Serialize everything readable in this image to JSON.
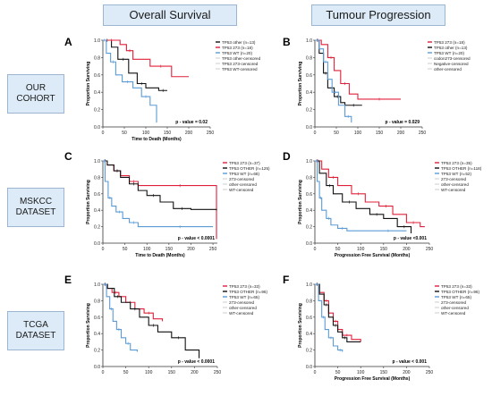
{
  "headers": {
    "col1": "Overall Survival",
    "col2": "Tumour Progression"
  },
  "rows": [
    {
      "line1": "OUR",
      "line2": "COHORT"
    },
    {
      "line1": "MSKCC",
      "line2": "DATASET"
    },
    {
      "line1": "TCGA",
      "line2": "DATASET"
    }
  ],
  "panel_letters": [
    "A",
    "B",
    "C",
    "D",
    "E",
    "F"
  ],
  "colors": {
    "red": "#e0203a",
    "black": "#111111",
    "blue": "#5b9bd5",
    "gray": "#aaaaaa"
  },
  "chart_data": [
    {
      "id": "A",
      "type": "line",
      "ylabel": "Proportion Surviving",
      "xlabel": "Time to Death (Months)",
      "xlim": [
        0,
        250
      ],
      "ylim": [
        0.0,
        1.0
      ],
      "xticks": [
        0,
        50,
        100,
        150,
        200,
        250
      ],
      "yticks": [
        0.0,
        0.2,
        0.4,
        0.6,
        0.8,
        1.0
      ],
      "annotation": "p - value = 0.02",
      "legend": [
        "TP53 other (n=13)",
        "TP53 273 (n=18)",
        "TP53 WT (n=20)",
        "TP53 other-censored",
        "TP53 273-censored",
        "TP53 WT-censored"
      ],
      "series": [
        {
          "name": "TP53 other (n=13)",
          "color": "black",
          "x": [
            0,
            20,
            35,
            60,
            80,
            100,
            130,
            150
          ],
          "y": [
            1.0,
            0.92,
            0.78,
            0.62,
            0.5,
            0.45,
            0.42,
            0.42
          ]
        },
        {
          "name": "TP53 273 (n=18)",
          "color": "red",
          "x": [
            0,
            40,
            55,
            70,
            110,
            160,
            200
          ],
          "y": [
            1.0,
            0.95,
            0.88,
            0.78,
            0.7,
            0.58,
            0.58
          ]
        },
        {
          "name": "TP53 WT (n=20)",
          "color": "blue",
          "x": [
            0,
            8,
            18,
            30,
            45,
            70,
            90,
            110,
            125
          ],
          "y": [
            1.0,
            0.85,
            0.75,
            0.6,
            0.52,
            0.45,
            0.35,
            0.25,
            0.05
          ]
        }
      ]
    },
    {
      "id": "B",
      "type": "line",
      "ylabel": "Proportion Surviving",
      "xlabel": "",
      "xlim": [
        0,
        250
      ],
      "ylim": [
        0.0,
        1.0
      ],
      "xticks": [
        0,
        50,
        100,
        150,
        200,
        250
      ],
      "yticks": [
        0.0,
        0.2,
        0.4,
        0.6,
        0.8,
        1.0
      ],
      "annotation": "p - value = 0.029",
      "legend": [
        "TP53 273 (n=18)",
        "TP53 other (n=13)",
        "TP53 WT (n=20)",
        "codon273-censored",
        "Negative-censored",
        "other-censored"
      ],
      "series": [
        {
          "name": "TP53 273 (n=18)",
          "color": "red",
          "x": [
            0,
            15,
            30,
            45,
            60,
            80,
            100,
            200
          ],
          "y": [
            1.0,
            0.95,
            0.8,
            0.65,
            0.5,
            0.38,
            0.32,
            0.32
          ]
        },
        {
          "name": "TP53 other (n=13)",
          "color": "black",
          "x": [
            0,
            10,
            20,
            30,
            45,
            60,
            70,
            110
          ],
          "y": [
            1.0,
            0.85,
            0.62,
            0.45,
            0.35,
            0.28,
            0.25,
            0.25
          ]
        },
        {
          "name": "TP53 WT (n=20)",
          "color": "blue",
          "x": [
            0,
            10,
            20,
            30,
            40,
            55,
            70,
            85
          ],
          "y": [
            1.0,
            0.9,
            0.75,
            0.55,
            0.4,
            0.25,
            0.12,
            0.05
          ]
        }
      ]
    },
    {
      "id": "C",
      "type": "line",
      "ylabel": "Proportion Surviving",
      "xlabel": "Time to Death (Months)",
      "xlim": [
        0,
        260
      ],
      "ylim": [
        0.0,
        1.0
      ],
      "xticks": [
        0,
        50,
        100,
        150,
        200,
        250
      ],
      "yticks": [
        0.0,
        0.2,
        0.4,
        0.6,
        0.8,
        1.0
      ],
      "annotation": "p - value < 0.0001",
      "legend": [
        "TP53 273 (n=37)",
        "TP53 OTHER (n=125)",
        "TP53 WT (n=68)",
        "273-censored",
        "other-censored",
        "WT-censored"
      ],
      "series": [
        {
          "name": "TP53 273 (n=37)",
          "color": "red",
          "x": [
            0,
            10,
            25,
            40,
            60,
            80,
            100,
            250,
            258
          ],
          "y": [
            1.0,
            0.95,
            0.88,
            0.82,
            0.75,
            0.7,
            0.7,
            0.7,
            0.05
          ]
        },
        {
          "name": "TP53 OTHER (n=125)",
          "color": "black",
          "x": [
            0,
            10,
            25,
            40,
            60,
            80,
            100,
            130,
            160,
            200,
            258
          ],
          "y": [
            1.0,
            0.95,
            0.88,
            0.8,
            0.72,
            0.64,
            0.58,
            0.5,
            0.42,
            0.41,
            0.4
          ]
        },
        {
          "name": "TP53 WT (n=68)",
          "color": "blue",
          "x": [
            0,
            5,
            12,
            20,
            30,
            45,
            60,
            80,
            100,
            250
          ],
          "y": [
            1.0,
            0.75,
            0.55,
            0.45,
            0.38,
            0.3,
            0.25,
            0.2,
            0.2,
            0.2
          ]
        }
      ]
    },
    {
      "id": "D",
      "type": "line",
      "ylabel": "Proportion Surviving",
      "xlabel": "Progression Free Survival (Months)",
      "xlim": [
        0,
        250
      ],
      "ylim": [
        0.0,
        1.0
      ],
      "xticks": [
        0,
        50,
        100,
        150,
        200,
        250
      ],
      "yticks": [
        0.0,
        0.2,
        0.4,
        0.6,
        0.8,
        1.0
      ],
      "annotation": "p - value <0.001",
      "legend": [
        "TP53 273 (n=35)",
        "TP53 OTHER (n=118)",
        "TP53 WT (n=52)",
        "273-censored",
        "other-censored",
        "WT-censored"
      ],
      "series": [
        {
          "name": "TP53 273 (n=35)",
          "color": "red",
          "x": [
            0,
            15,
            30,
            50,
            80,
            110,
            140,
            170,
            200,
            230,
            240
          ],
          "y": [
            1.0,
            0.9,
            0.8,
            0.7,
            0.6,
            0.5,
            0.45,
            0.35,
            0.25,
            0.2,
            0.2
          ]
        },
        {
          "name": "TP53 OTHER (n=118)",
          "color": "black",
          "x": [
            0,
            10,
            25,
            40,
            60,
            90,
            120,
            150,
            180,
            210
          ],
          "y": [
            1.0,
            0.85,
            0.7,
            0.6,
            0.5,
            0.42,
            0.35,
            0.3,
            0.2,
            0.12
          ]
        },
        {
          "name": "TP53 WT (n=52)",
          "color": "blue",
          "x": [
            0,
            5,
            10,
            15,
            25,
            35,
            50,
            70,
            120,
            200
          ],
          "y": [
            1.0,
            0.75,
            0.55,
            0.4,
            0.3,
            0.22,
            0.18,
            0.15,
            0.15,
            0.15
          ]
        }
      ]
    },
    {
      "id": "E",
      "type": "line",
      "ylabel": "Proportion Surviving",
      "xlabel": "",
      "xlim": [
        0,
        250
      ],
      "ylim": [
        0.0,
        1.0
      ],
      "xticks": [
        0,
        50,
        100,
        150,
        200,
        250
      ],
      "yticks": [
        0.0,
        0.2,
        0.4,
        0.6,
        0.8,
        1.0
      ],
      "annotation": "p - value < 0.0001",
      "legend": [
        "TP53 273 (n=33)",
        "TP53 OTHER (n=96)",
        "TP53 WT (n=65)",
        "273-censored",
        "other-censored",
        "WT-censored"
      ],
      "series": [
        {
          "name": "TP53 273 (n=33)",
          "color": "red",
          "x": [
            0,
            10,
            20,
            35,
            50,
            70,
            90,
            110,
            130
          ],
          "y": [
            1.0,
            0.95,
            0.9,
            0.85,
            0.78,
            0.7,
            0.65,
            0.58,
            0.55
          ]
        },
        {
          "name": "TP53 OTHER (n=96)",
          "color": "black",
          "x": [
            0,
            10,
            25,
            40,
            60,
            80,
            100,
            120,
            150,
            180,
            210
          ],
          "y": [
            1.0,
            0.95,
            0.85,
            0.78,
            0.7,
            0.6,
            0.5,
            0.42,
            0.35,
            0.2,
            0.1
          ]
        },
        {
          "name": "TP53 WT (n=65)",
          "color": "blue",
          "x": [
            0,
            8,
            15,
            22,
            30,
            40,
            50,
            60,
            75
          ],
          "y": [
            1.0,
            0.85,
            0.7,
            0.55,
            0.45,
            0.35,
            0.28,
            0.2,
            0.18
          ]
        }
      ]
    },
    {
      "id": "F",
      "type": "line",
      "ylabel": "Proportion Surviving",
      "xlabel": "Progression Free Survival (Months)",
      "xlim": [
        0,
        250
      ],
      "ylim": [
        0.0,
        1.0
      ],
      "xticks": [
        0,
        50,
        100,
        150,
        200,
        250
      ],
      "yticks": [
        0.0,
        0.2,
        0.4,
        0.6,
        0.8,
        1.0
      ],
      "annotation": "p - value < 0.001",
      "legend": [
        "TP53 273 (n=33)",
        "TP53 OTHER (n=96)",
        "TP53 WT (n=65)",
        "273-censored",
        "other-censored",
        "WT-censored"
      ],
      "series": [
        {
          "name": "TP53 273 (n=33)",
          "color": "red",
          "x": [
            0,
            10,
            20,
            30,
            40,
            50,
            60,
            80,
            100
          ],
          "y": [
            1.0,
            0.9,
            0.8,
            0.65,
            0.55,
            0.45,
            0.38,
            0.33,
            0.3
          ]
        },
        {
          "name": "TP53 OTHER (n=96)",
          "color": "black",
          "x": [
            0,
            10,
            20,
            30,
            40,
            50,
            60,
            70,
            100
          ],
          "y": [
            1.0,
            0.88,
            0.75,
            0.6,
            0.5,
            0.42,
            0.35,
            0.3,
            0.3
          ]
        },
        {
          "name": "TP53 WT (n=65)",
          "color": "blue",
          "x": [
            0,
            8,
            15,
            22,
            30,
            40,
            50,
            60
          ],
          "y": [
            1.0,
            0.8,
            0.6,
            0.45,
            0.35,
            0.25,
            0.2,
            0.18
          ]
        }
      ]
    }
  ]
}
